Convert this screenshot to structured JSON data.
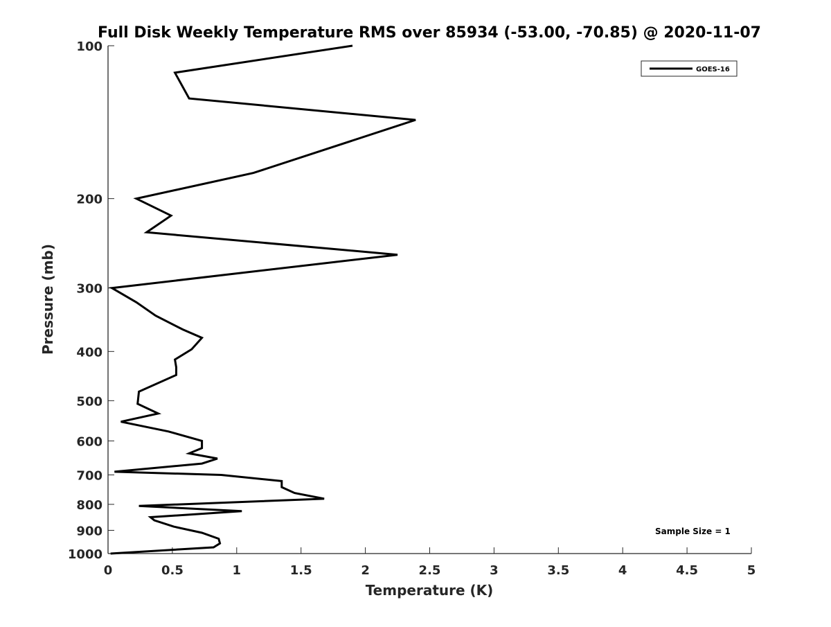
{
  "chart_data": {
    "type": "line",
    "title": "Full Disk Weekly Temperature RMS over 85934 (-53.00, -70.85) @ 2020-11-07",
    "xlabel": "Temperature (K)",
    "ylabel": "Pressure (mb)",
    "xlim": [
      0,
      5
    ],
    "ylim": [
      100,
      1000
    ],
    "y_scale": "log",
    "y_reversed": true,
    "x_ticks": [
      "0",
      "0.5",
      "1",
      "1.5",
      "2",
      "2.5",
      "3",
      "3.5",
      "4",
      "4.5",
      "5"
    ],
    "y_ticks": [
      "100",
      "200",
      "300",
      "400",
      "500",
      "600",
      "700",
      "800",
      "900",
      "1000"
    ],
    "grid": false,
    "legend_position": "top-right",
    "annotation": "Sample Size = 1",
    "series": [
      {
        "name": "GOES-16",
        "color": "#000000",
        "x": [
          1.9,
          0.52,
          0.63,
          2.39,
          1.13,
          0.22,
          0.49,
          0.3,
          2.25,
          0.03,
          0.22,
          0.37,
          0.58,
          0.73,
          0.65,
          0.52,
          0.53,
          0.53,
          0.24,
          0.23,
          0.39,
          0.1,
          0.47,
          0.73,
          0.73,
          0.63,
          0.85,
          0.73,
          0.05,
          0.88,
          1.35,
          1.35,
          1.45,
          1.68,
          0.24,
          1.04,
          0.33,
          0.36,
          0.51,
          0.73,
          0.86,
          0.87,
          0.82,
          0.02
        ],
        "y": [
          100,
          113,
          127,
          140,
          178,
          200,
          216,
          233,
          258,
          300,
          320,
          340,
          362,
          376,
          396,
          415,
          430,
          445,
          480,
          507,
          530,
          550,
          575,
          600,
          620,
          635,
          650,
          665,
          690,
          700,
          720,
          740,
          760,
          780,
          806,
          825,
          848,
          860,
          885,
          910,
          935,
          955,
          972,
          1000
        ]
      }
    ]
  }
}
